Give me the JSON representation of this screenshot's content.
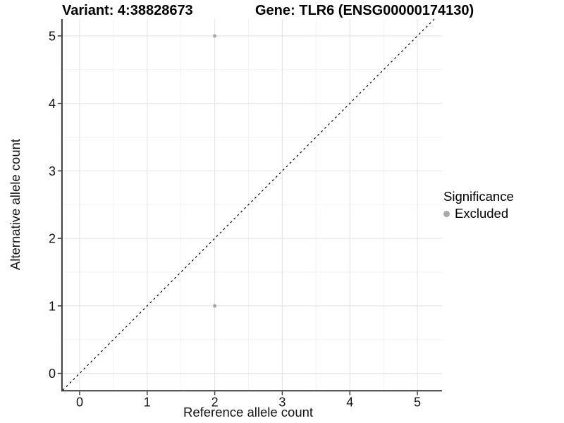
{
  "chart_data": {
    "type": "scatter",
    "title_left": "Variant: 4:38828673",
    "title_right": "Gene: TLR6 (ENSG00000174130)",
    "xlabel": "Reference allele count",
    "ylabel": "Alternative allele count",
    "xlim": [
      -0.25,
      5.25
    ],
    "ylim": [
      -0.25,
      5.25
    ],
    "x_ticks": [
      0,
      1,
      2,
      3,
      4,
      5
    ],
    "y_ticks": [
      0,
      1,
      2,
      3,
      4,
      5
    ],
    "x_minor": [
      0.5,
      1.5,
      2.5,
      3.5,
      4.5
    ],
    "y_minor": [
      0.5,
      1.5,
      2.5,
      3.5,
      4.5
    ],
    "grid": true,
    "points": [
      {
        "x": 2,
        "y": 5,
        "series": "Excluded"
      },
      {
        "x": 2,
        "y": 1,
        "series": "Excluded"
      }
    ],
    "series_colors": {
      "Excluded": "#a9a9a9"
    },
    "reference_line": {
      "type": "identity",
      "slope": 1,
      "intercept": 0,
      "style": "dashed",
      "color": "#000000"
    },
    "legend": {
      "title": "Significance",
      "position": "right",
      "items": [
        {
          "label": "Excluded",
          "color": "#a9a9a9"
        }
      ]
    },
    "colors": {
      "grid_major": "#e4e4e4",
      "grid_minor": "#f2f2f2",
      "axis_line": "#3c3c3c",
      "tick_label": "#141414",
      "point": "#a9a9a9",
      "background": "#ffffff"
    }
  }
}
